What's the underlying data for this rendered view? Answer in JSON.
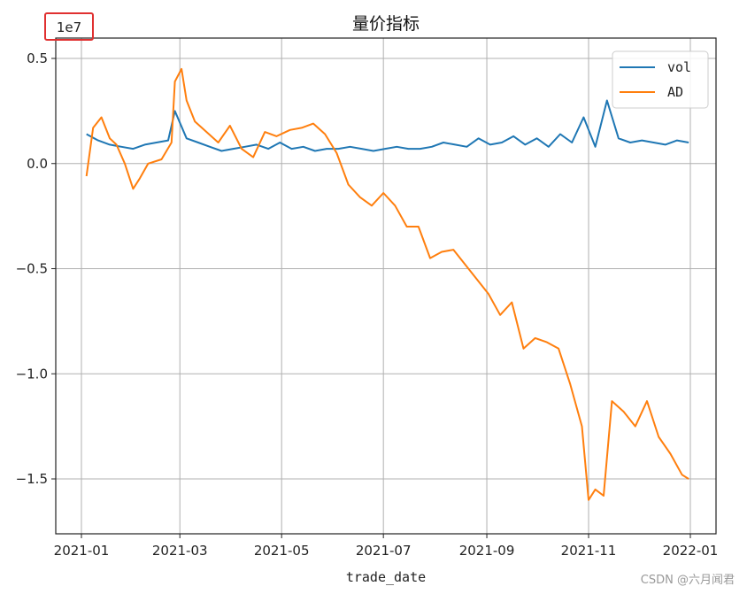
{
  "chart_data": {
    "type": "line",
    "title": "量价指标",
    "xlabel": "trade_date",
    "ylabel": "",
    "y_offset_label": "1e7",
    "y_offset_highlight_color": "#e03030",
    "xlim": [
      "2021-01-01",
      "2022-01-01"
    ],
    "ylim": [
      -1.75,
      0.5
    ],
    "grid": true,
    "legend_position": "top-right",
    "x_ticks": [
      "2021-01",
      "2021-03",
      "2021-05",
      "2021-07",
      "2021-09",
      "2021-11",
      "2022-01"
    ],
    "y_ticks": [
      0.5,
      0.0,
      -0.5,
      -1.0,
      -1.5
    ],
    "y_tick_labels": [
      "0.5",
      "0.0",
      "−0.5",
      "−1.0",
      "−1.5"
    ],
    "series": [
      {
        "name": "vol",
        "color": "#1f77b4",
        "x": [
          "2021-01-04",
          "2021-01-11",
          "2021-01-18",
          "2021-01-25",
          "2021-02-01",
          "2021-02-08",
          "2021-02-15",
          "2021-02-22",
          "2021-02-26",
          "2021-03-05",
          "2021-03-12",
          "2021-03-19",
          "2021-03-26",
          "2021-04-02",
          "2021-04-09",
          "2021-04-16",
          "2021-04-23",
          "2021-04-30",
          "2021-05-07",
          "2021-05-14",
          "2021-05-21",
          "2021-05-28",
          "2021-06-04",
          "2021-06-11",
          "2021-06-18",
          "2021-06-25",
          "2021-07-02",
          "2021-07-09",
          "2021-07-16",
          "2021-07-23",
          "2021-07-30",
          "2021-08-06",
          "2021-08-13",
          "2021-08-20",
          "2021-08-27",
          "2021-09-03",
          "2021-09-10",
          "2021-09-17",
          "2021-09-24",
          "2021-10-01",
          "2021-10-08",
          "2021-10-15",
          "2021-10-22",
          "2021-10-29",
          "2021-11-05",
          "2021-11-12",
          "2021-11-19",
          "2021-11-26",
          "2021-12-03",
          "2021-12-10",
          "2021-12-17",
          "2021-12-24",
          "2021-12-31"
        ],
        "values": [
          0.14,
          0.11,
          0.09,
          0.08,
          0.07,
          0.09,
          0.1,
          0.11,
          0.25,
          0.12,
          0.1,
          0.08,
          0.06,
          0.07,
          0.08,
          0.09,
          0.07,
          0.1,
          0.07,
          0.08,
          0.06,
          0.07,
          0.07,
          0.08,
          0.07,
          0.06,
          0.07,
          0.08,
          0.07,
          0.07,
          0.08,
          0.1,
          0.09,
          0.08,
          0.12,
          0.09,
          0.1,
          0.13,
          0.09,
          0.12,
          0.08,
          0.14,
          0.1,
          0.22,
          0.08,
          0.3,
          0.12,
          0.1,
          0.11,
          0.1,
          0.09,
          0.11,
          0.1
        ]
      },
      {
        "name": "AD",
        "color": "#ff7f0e",
        "x": [
          "2021-01-04",
          "2021-01-08",
          "2021-01-13",
          "2021-01-18",
          "2021-01-22",
          "2021-01-27",
          "2021-02-01",
          "2021-02-05",
          "2021-02-10",
          "2021-02-18",
          "2021-02-24",
          "2021-02-26",
          "2021-03-02",
          "2021-03-05",
          "2021-03-10",
          "2021-03-17",
          "2021-03-24",
          "2021-03-31",
          "2021-04-07",
          "2021-04-14",
          "2021-04-21",
          "2021-04-28",
          "2021-05-06",
          "2021-05-13",
          "2021-05-20",
          "2021-05-27",
          "2021-06-03",
          "2021-06-10",
          "2021-06-17",
          "2021-06-24",
          "2021-07-01",
          "2021-07-08",
          "2021-07-15",
          "2021-07-22",
          "2021-07-29",
          "2021-08-05",
          "2021-08-12",
          "2021-08-19",
          "2021-08-26",
          "2021-09-02",
          "2021-09-09",
          "2021-09-16",
          "2021-09-23",
          "2021-09-30",
          "2021-10-07",
          "2021-10-14",
          "2021-10-21",
          "2021-10-28",
          "2021-11-01",
          "2021-11-05",
          "2021-11-10",
          "2021-11-15",
          "2021-11-22",
          "2021-11-29",
          "2021-12-06",
          "2021-12-13",
          "2021-12-20",
          "2021-12-27",
          "2021-12-31"
        ],
        "values": [
          -0.06,
          0.17,
          0.22,
          0.12,
          0.09,
          0.0,
          -0.12,
          -0.07,
          0.0,
          0.02,
          0.1,
          0.39,
          0.45,
          0.3,
          0.2,
          0.15,
          0.1,
          0.18,
          0.07,
          0.03,
          0.15,
          0.13,
          0.16,
          0.17,
          0.19,
          0.14,
          0.05,
          -0.1,
          -0.16,
          -0.2,
          -0.14,
          -0.2,
          -0.3,
          -0.3,
          -0.45,
          -0.42,
          -0.41,
          -0.48,
          -0.55,
          -0.62,
          -0.72,
          -0.66,
          -0.88,
          -0.83,
          -0.85,
          -0.88,
          -1.05,
          -1.25,
          -1.6,
          -1.55,
          -1.58,
          -1.13,
          -1.18,
          -1.25,
          -1.13,
          -1.3,
          -1.38,
          -1.48,
          -1.5
        ]
      }
    ]
  },
  "watermark": "CSDN @六月闻君"
}
